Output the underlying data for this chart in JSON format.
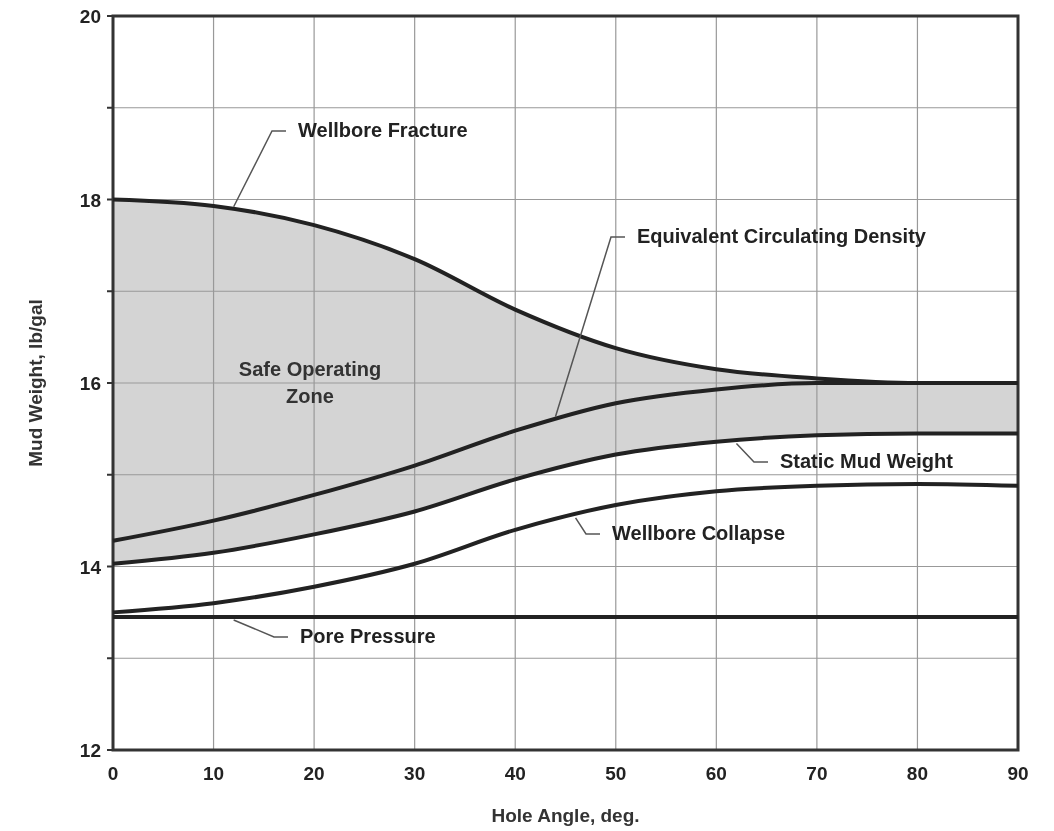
{
  "chart_data": {
    "type": "line",
    "xlabel": "Hole Angle, deg.",
    "ylabel": "Mud Weight, lb/gal",
    "x": [
      0,
      10,
      20,
      30,
      40,
      50,
      60,
      70,
      80,
      90
    ],
    "xlim": [
      0,
      90
    ],
    "xticks": [
      0,
      10,
      20,
      30,
      40,
      50,
      60,
      70,
      80,
      90
    ],
    "ylim": [
      12,
      20
    ],
    "yticks": [
      12,
      {
        "value": 13,
        "label": null
      },
      14,
      {
        "value": 15,
        "label": null
      },
      16,
      {
        "value": 17,
        "label": null
      },
      18,
      {
        "value": 19,
        "label": null
      },
      20
    ],
    "grid": true,
    "marker": "none",
    "line_style": "solid",
    "series": [
      {
        "name": "Wellbore Fracture",
        "color": "#222222",
        "values": [
          18.0,
          17.93,
          17.72,
          17.35,
          16.8,
          16.38,
          16.15,
          16.05,
          16.0,
          16.0
        ]
      },
      {
        "name": "Equivalent Circulating Density",
        "color": "#222222",
        "values": [
          14.28,
          14.5,
          14.78,
          15.1,
          15.48,
          15.78,
          15.93,
          16.0,
          16.0,
          16.0
        ],
        "lower": [
          14.03,
          14.15,
          14.35,
          14.6,
          14.95,
          15.22,
          15.36,
          15.43,
          15.45,
          15.45
        ],
        "upper": [
          18.0,
          17.93,
          17.72,
          17.35,
          16.8,
          16.38,
          16.15,
          16.05,
          16.0,
          16.0
        ]
      },
      {
        "name": "Static Mud Weight",
        "color": "#222222",
        "values": [
          14.03,
          14.15,
          14.35,
          14.6,
          14.95,
          15.22,
          15.36,
          15.43,
          15.45,
          15.45
        ]
      },
      {
        "name": "Wellbore Collapse",
        "color": "#222222",
        "values": [
          13.5,
          13.6,
          13.78,
          14.03,
          14.4,
          14.67,
          14.82,
          14.88,
          14.9,
          14.88
        ]
      },
      {
        "name": "Pore Pressure",
        "color": "#222222",
        "values": [
          13.45,
          13.45,
          13.45,
          13.45,
          13.45,
          13.45,
          13.45,
          13.45,
          13.45,
          13.45
        ]
      }
    ],
    "annotations": [
      "Safe Operating Zone"
    ]
  }
}
